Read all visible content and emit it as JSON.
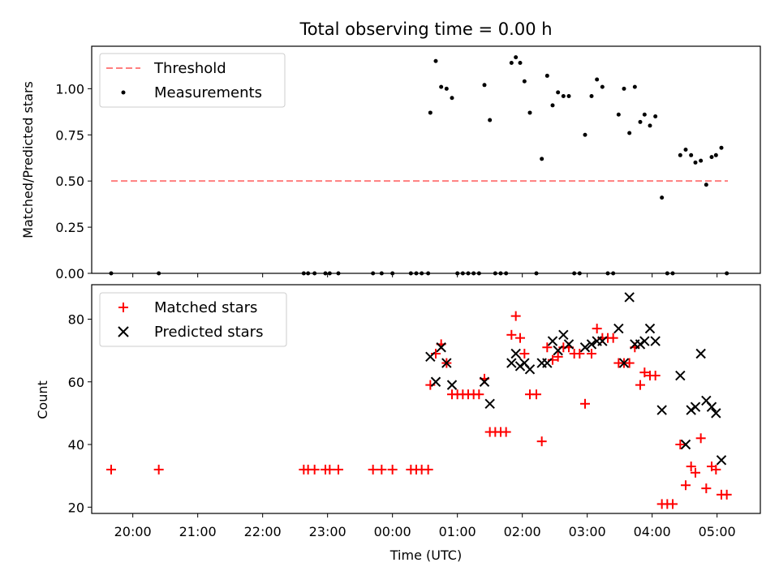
{
  "chart_data": [
    {
      "type": "scatter",
      "title": "Total observing time = 0.00 h",
      "xlabel": "",
      "ylabel": "Matched/Predicted stars",
      "ylim": [
        0,
        1.23
      ],
      "y_ticks": [
        "0.00",
        "0.25",
        "0.50",
        "0.75",
        "1.00"
      ],
      "x_axis": "time",
      "xlim": [
        "19:22",
        "05:40"
      ],
      "grid": false,
      "legend_position": "top-left",
      "threshold": {
        "name": "Threshold",
        "y": 0.5,
        "x_range": [
          "19:40",
          "05:10"
        ],
        "color": "#ff7f7f",
        "style": "dashed"
      },
      "series": [
        {
          "name": "Measurements",
          "marker": "dot",
          "color": "#000000",
          "points": [
            [
              "19:40",
              0.0
            ],
            [
              "20:24",
              0.0
            ],
            [
              "22:38",
              0.0
            ],
            [
              "22:42",
              0.0
            ],
            [
              "22:48",
              0.0
            ],
            [
              "22:58",
              0.0
            ],
            [
              "23:02",
              0.0
            ],
            [
              "23:10",
              0.0
            ],
            [
              "23:42",
              0.0
            ],
            [
              "23:50",
              0.0
            ],
            [
              "24:00",
              0.0
            ],
            [
              "24:17",
              0.0
            ],
            [
              "24:22",
              0.0
            ],
            [
              "24:27",
              0.0
            ],
            [
              "24:33",
              0.0
            ],
            [
              "24:35",
              0.87
            ],
            [
              "24:40",
              1.15
            ],
            [
              "24:45",
              1.01
            ],
            [
              "24:50",
              1.0
            ],
            [
              "24:55",
              0.95
            ],
            [
              "25:00",
              0.0
            ],
            [
              "25:05",
              0.0
            ],
            [
              "25:10",
              0.0
            ],
            [
              "25:15",
              0.0
            ],
            [
              "25:20",
              0.0
            ],
            [
              "25:25",
              1.02
            ],
            [
              "25:30",
              0.83
            ],
            [
              "25:35",
              0.0
            ],
            [
              "25:40",
              0.0
            ],
            [
              "25:45",
              0.0
            ],
            [
              "25:50",
              1.14
            ],
            [
              "25:54",
              1.17
            ],
            [
              "25:58",
              1.14
            ],
            [
              "26:02",
              1.04
            ],
            [
              "26:07",
              0.87
            ],
            [
              "26:13",
              0.0
            ],
            [
              "26:18",
              0.62
            ],
            [
              "26:23",
              1.07
            ],
            [
              "26:28",
              0.91
            ],
            [
              "26:33",
              0.98
            ],
            [
              "26:38",
              0.96
            ],
            [
              "26:43",
              0.96
            ],
            [
              "26:48",
              0.0
            ],
            [
              "26:53",
              0.0
            ],
            [
              "26:58",
              0.75
            ],
            [
              "27:04",
              0.96
            ],
            [
              "27:09",
              1.05
            ],
            [
              "27:14",
              1.01
            ],
            [
              "27:19",
              0.0
            ],
            [
              "27:24",
              0.0
            ],
            [
              "27:29",
              0.86
            ],
            [
              "27:34",
              1.0
            ],
            [
              "27:39",
              0.76
            ],
            [
              "27:44",
              1.01
            ],
            [
              "27:49",
              0.82
            ],
            [
              "27:53",
              0.86
            ],
            [
              "27:58",
              0.8
            ],
            [
              "28:03",
              0.85
            ],
            [
              "28:09",
              0.41
            ],
            [
              "28:14",
              0.0
            ],
            [
              "28:19",
              0.0
            ],
            [
              "28:26",
              0.64
            ],
            [
              "28:31",
              0.67
            ],
            [
              "28:36",
              0.64
            ],
            [
              "28:40",
              0.6
            ],
            [
              "28:45",
              0.61
            ],
            [
              "28:50",
              0.48
            ],
            [
              "28:55",
              0.63
            ],
            [
              "28:59",
              0.64
            ],
            [
              "29:04",
              0.68
            ],
            [
              "29:09",
              0.0
            ]
          ]
        }
      ]
    },
    {
      "type": "scatter",
      "title": "",
      "xlabel": "Time (UTC)",
      "ylabel": "Count",
      "ylim": [
        18,
        91
      ],
      "y_ticks": [
        "20",
        "40",
        "60",
        "80"
      ],
      "x_axis": "time",
      "xlim": [
        "19:22",
        "05:40"
      ],
      "x_ticks": [
        "20:00",
        "21:00",
        "22:00",
        "23:00",
        "00:00",
        "01:00",
        "02:00",
        "03:00",
        "04:00",
        "05:00"
      ],
      "grid": false,
      "legend_position": "top-left",
      "series": [
        {
          "name": "Matched stars",
          "marker": "plus",
          "color": "#ff0000",
          "points": [
            [
              "19:40",
              32
            ],
            [
              "20:24",
              32
            ],
            [
              "22:38",
              32
            ],
            [
              "22:42",
              32
            ],
            [
              "22:48",
              32
            ],
            [
              "22:58",
              32
            ],
            [
              "23:02",
              32
            ],
            [
              "23:10",
              32
            ],
            [
              "23:42",
              32
            ],
            [
              "23:50",
              32
            ],
            [
              "24:00",
              32
            ],
            [
              "24:17",
              32
            ],
            [
              "24:22",
              32
            ],
            [
              "24:27",
              32
            ],
            [
              "24:33",
              32
            ],
            [
              "24:35",
              59
            ],
            [
              "24:40",
              69
            ],
            [
              "24:45",
              72
            ],
            [
              "24:50",
              66
            ],
            [
              "24:55",
              56
            ],
            [
              "25:00",
              56
            ],
            [
              "25:05",
              56
            ],
            [
              "25:10",
              56
            ],
            [
              "25:15",
              56
            ],
            [
              "25:20",
              56
            ],
            [
              "25:25",
              61
            ],
            [
              "25:30",
              44
            ],
            [
              "25:35",
              44
            ],
            [
              "25:40",
              44
            ],
            [
              "25:45",
              44
            ],
            [
              "25:50",
              75
            ],
            [
              "25:54",
              81
            ],
            [
              "25:58",
              74
            ],
            [
              "26:02",
              69
            ],
            [
              "26:07",
              56
            ],
            [
              "26:13",
              56
            ],
            [
              "26:18",
              41
            ],
            [
              "26:23",
              71
            ],
            [
              "26:28",
              67
            ],
            [
              "26:33",
              68
            ],
            [
              "26:38",
              71
            ],
            [
              "26:43",
              71
            ],
            [
              "26:48",
              69
            ],
            [
              "26:53",
              69
            ],
            [
              "26:58",
              53
            ],
            [
              "27:04",
              69
            ],
            [
              "27:09",
              77
            ],
            [
              "27:14",
              74
            ],
            [
              "27:19",
              74
            ],
            [
              "27:24",
              74
            ],
            [
              "27:29",
              66
            ],
            [
              "27:34",
              66
            ],
            [
              "27:39",
              66
            ],
            [
              "27:44",
              71
            ],
            [
              "27:49",
              59
            ],
            [
              "27:53",
              63
            ],
            [
              "27:58",
              62
            ],
            [
              "28:03",
              62
            ],
            [
              "28:09",
              21
            ],
            [
              "28:14",
              21
            ],
            [
              "28:19",
              21
            ],
            [
              "28:26",
              40
            ],
            [
              "28:31",
              27
            ],
            [
              "28:36",
              33
            ],
            [
              "28:40",
              31
            ],
            [
              "28:45",
              42
            ],
            [
              "28:50",
              26
            ],
            [
              "28:55",
              33
            ],
            [
              "28:59",
              32
            ],
            [
              "29:04",
              24
            ],
            [
              "29:09",
              24
            ]
          ]
        },
        {
          "name": "Predicted stars",
          "marker": "x",
          "color": "#000000",
          "points": [
            [
              "24:35",
              68
            ],
            [
              "24:40",
              60
            ],
            [
              "24:45",
              71
            ],
            [
              "24:50",
              66
            ],
            [
              "24:55",
              59
            ],
            [
              "25:25",
              60
            ],
            [
              "25:30",
              53
            ],
            [
              "25:50",
              66
            ],
            [
              "25:54",
              69
            ],
            [
              "25:58",
              65
            ],
            [
              "26:02",
              66
            ],
            [
              "26:07",
              64
            ],
            [
              "26:18",
              66
            ],
            [
              "26:23",
              66
            ],
            [
              "26:28",
              73
            ],
            [
              "26:33",
              70
            ],
            [
              "26:38",
              75
            ],
            [
              "26:43",
              72
            ],
            [
              "26:58",
              71
            ],
            [
              "27:04",
              72
            ],
            [
              "27:09",
              73
            ],
            [
              "27:14",
              73
            ],
            [
              "27:29",
              77
            ],
            [
              "27:34",
              66
            ],
            [
              "27:39",
              87
            ],
            [
              "27:44",
              72
            ],
            [
              "27:49",
              72
            ],
            [
              "27:53",
              73
            ],
            [
              "27:58",
              77
            ],
            [
              "28:03",
              73
            ],
            [
              "28:09",
              51
            ],
            [
              "28:26",
              62
            ],
            [
              "28:31",
              40
            ],
            [
              "28:36",
              51
            ],
            [
              "28:40",
              52
            ],
            [
              "28:45",
              69
            ],
            [
              "28:50",
              54
            ],
            [
              "28:55",
              52
            ],
            [
              "28:59",
              50
            ],
            [
              "29:04",
              35
            ]
          ]
        }
      ]
    }
  ]
}
